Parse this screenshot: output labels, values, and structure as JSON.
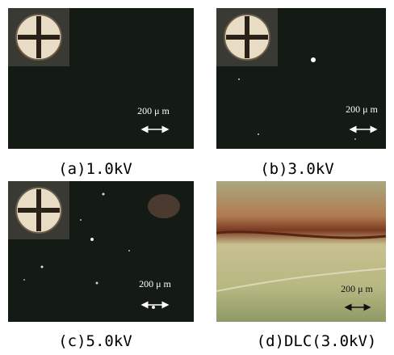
{
  "panels": [
    {
      "caption": "(a)1.0kV",
      "scale": "200 μ m"
    },
    {
      "caption": "(b)3.0kV",
      "scale": "200 μ m"
    },
    {
      "caption": "(c)5.0kV",
      "scale": "200 μ m"
    },
    {
      "caption": "(d)DLC(3.0kV)",
      "scale": "200 μ m"
    }
  ]
}
